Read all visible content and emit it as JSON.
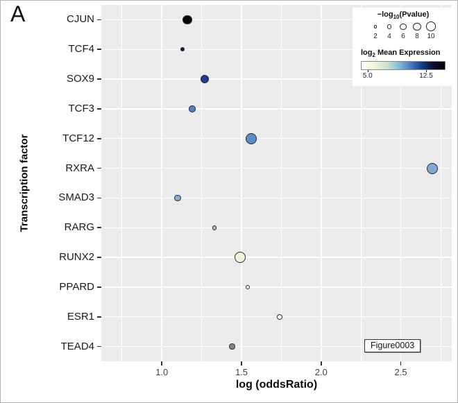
{
  "panel_label": "A",
  "figure_tag": "Figure0003",
  "axes": {
    "x_title": "log (oddsRatio)",
    "y_title": "Transcription factor"
  },
  "legend": {
    "size": {
      "title_prefix": "−log",
      "title_sub": "10",
      "title_suffix": "(Pvalue)",
      "values": [
        2,
        4,
        6,
        8,
        10
      ]
    },
    "color": {
      "title_prefix": "log",
      "title_sub": "2",
      "title_suffix": " Mean Expression",
      "min_label": "5.0",
      "max_label": "12.5"
    }
  },
  "chart_data": {
    "type": "scatter",
    "title": "",
    "xlabel": "log (oddsRatio)",
    "ylabel": "Transcription factor",
    "xlim": [
      0.62,
      2.82
    ],
    "x_ticks": [
      "1.0",
      "1.5",
      "2.0",
      "2.5"
    ],
    "x_tick_values": [
      1.0,
      1.5,
      2.0,
      2.5
    ],
    "x_minor_tick_values": [
      0.75,
      1.25,
      1.75,
      2.25,
      2.75
    ],
    "categories": [
      "CJUN",
      "TCF4",
      "SOX9",
      "TCF3",
      "TCF12",
      "RXRA",
      "SMAD3",
      "RARG",
      "RUNX2",
      "PPARD",
      "ESR1",
      "TEAD4"
    ],
    "size_variable": "-log10(Pvalue)",
    "color_variable": "log2 Mean Expression",
    "color_scale": {
      "min": 5.0,
      "max": 12.5,
      "gradient": [
        "#ffffff",
        "#f4f8d3",
        "#cfe6cf",
        "#8fc3d8",
        "#4f87c3",
        "#1b3f8f",
        "#0a1030",
        "#000000"
      ]
    },
    "points": [
      {
        "factor": "CJUN",
        "log_odds_ratio": 1.16,
        "neg_log10_pvalue": 8,
        "log2_mean_expression": 13.0,
        "color": "#050505"
      },
      {
        "factor": "TCF4",
        "log_odds_ratio": 1.13,
        "neg_log10_pvalue": 2,
        "log2_mean_expression": 12.3,
        "color": "#131c55"
      },
      {
        "factor": "SOX9",
        "log_odds_ratio": 1.27,
        "neg_log10_pvalue": 7,
        "log2_mean_expression": 11.8,
        "color": "#1d3a9b"
      },
      {
        "factor": "TCF3",
        "log_odds_ratio": 1.19,
        "neg_log10_pvalue": 5,
        "log2_mean_expression": 10.4,
        "color": "#4f82c4"
      },
      {
        "factor": "TCF12",
        "log_odds_ratio": 1.56,
        "neg_log10_pvalue": 10,
        "log2_mean_expression": 10.2,
        "color": "#5b8cc8"
      },
      {
        "factor": "RXRA",
        "log_odds_ratio": 2.7,
        "neg_log10_pvalue": 10,
        "log2_mean_expression": 9.4,
        "color": "#7fa9d4"
      },
      {
        "factor": "SMAD3",
        "log_odds_ratio": 1.1,
        "neg_log10_pvalue": 5,
        "log2_mean_expression": 9.3,
        "color": "#82add6"
      },
      {
        "factor": "RARG",
        "log_odds_ratio": 1.33,
        "neg_log10_pvalue": 3,
        "log2_mean_expression": 8.8,
        "color": "#97bcd9"
      },
      {
        "factor": "RUNX2",
        "log_odds_ratio": 1.49,
        "neg_log10_pvalue": 10,
        "log2_mean_expression": 5.6,
        "color": "#eef3d9"
      },
      {
        "factor": "PPARD",
        "log_odds_ratio": 1.54,
        "neg_log10_pvalue": 2.5,
        "log2_mean_expression": 5.1,
        "color": "#fbfcf5"
      },
      {
        "factor": "ESR1",
        "log_odds_ratio": 1.74,
        "neg_log10_pvalue": 4,
        "log2_mean_expression": 5.0,
        "color": "#ffffff"
      },
      {
        "factor": "TEAD4",
        "log_odds_ratio": 1.44,
        "neg_log10_pvalue": 4.5,
        "log2_mean_expression": null,
        "color": "#848484"
      }
    ],
    "legend_position": "top-right-inside",
    "grid": true,
    "plot_background": "#ebebeb",
    "grid_color": "#ffffff"
  }
}
